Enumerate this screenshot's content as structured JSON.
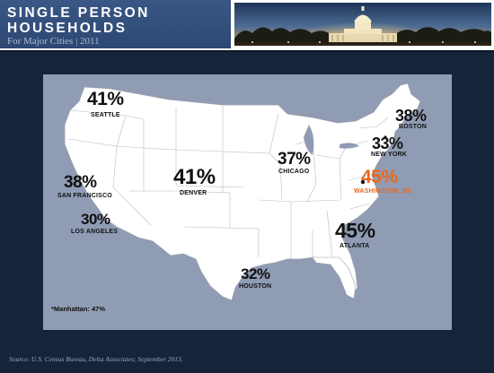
{
  "header": {
    "title_line1": "SINGLE PERSON",
    "title_line2": "HOUSEHOLDS",
    "subtitle": "For Major Cities | 2011"
  },
  "cities": [
    {
      "name": "SEATTLE",
      "value": "41%"
    },
    {
      "name": "BOSTON",
      "value": "38%"
    },
    {
      "name": "NEW YORK",
      "value": "33%"
    },
    {
      "name": "CHICAGO",
      "value": "37%"
    },
    {
      "name": "WASHINGTON, DC",
      "value": "45%"
    },
    {
      "name": "SAN FRANCISCO",
      "value": "38%"
    },
    {
      "name": "DENVER",
      "value": "41%"
    },
    {
      "name": "LOS ANGELES",
      "value": "30%"
    },
    {
      "name": "ATLANTA",
      "value": "45%"
    },
    {
      "name": "HOUSTON",
      "value": "32%"
    }
  ],
  "footnote": "*Manhattan: 47%",
  "source": "Source: U.S. Census Bureau, Delta Associates; September 2013.",
  "colors": {
    "background": "#16243b",
    "title_bar": "#34507d",
    "map_panel": "#909cb4",
    "highlight": "#e8681f"
  }
}
